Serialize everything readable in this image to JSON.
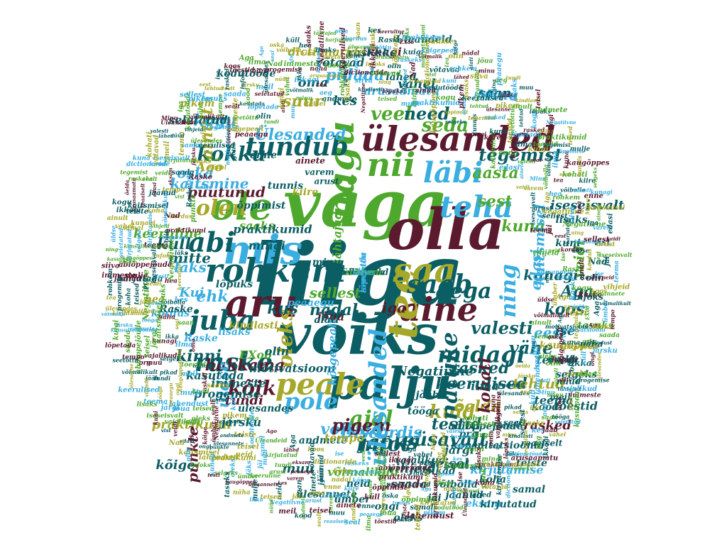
{
  "palette": {
    "background": "#ffffff",
    "colors": [
      "#0b5e63",
      "#5b1a2e",
      "#4fa82e",
      "#3aaee0",
      "#a6a82a"
    ]
  },
  "words": [
    {
      "text": "liiga",
      "color": "#0b5e63",
      "vertical": false
    },
    {
      "text": "väga",
      "color": "#4fa82e",
      "vertical": false
    },
    {
      "text": "olla",
      "color": "#5b1a2e",
      "vertical": false
    },
    {
      "text": "võiks",
      "color": "#0b5e63",
      "vertical": false
    },
    {
      "text": "palju",
      "color": "#0b5e63",
      "vertical": false
    },
    {
      "text": "mis",
      "color": "#3aaee0",
      "vertical": false
    },
    {
      "text": "ole",
      "color": "#4fa82e",
      "vertical": false
    },
    {
      "text": "aru",
      "color": "#5b1a2e",
      "vertical": false
    },
    {
      "text": "rohkem",
      "color": "#0b5e63",
      "vertical": false
    },
    {
      "text": "saa",
      "color": "#a6a82a",
      "vertical": false
    },
    {
      "text": "nii",
      "color": "#4fa82e",
      "vertical": false
    },
    {
      "text": "ülesanded",
      "color": "#5b1a2e",
      "vertical": false
    },
    {
      "text": "aine",
      "color": "#5b1a2e",
      "vertical": false
    },
    {
      "text": "tee",
      "color": "#a6a82a",
      "vertical": true
    },
    {
      "text": "peale",
      "color": "#a6a82a",
      "vertical": false
    },
    {
      "text": "nagu",
      "color": "#4fa82e",
      "vertical": true
    },
    {
      "text": "teha",
      "color": "#3aaee0",
      "vertical": false
    },
    {
      "text": "läbi",
      "color": "#3aaee0",
      "vertical": false
    },
    {
      "text": "abi",
      "color": "#0b5e63",
      "vertical": false
    },
    {
      "text": "olen",
      "color": "#a6a82a",
      "vertical": false
    },
    {
      "text": "juba",
      "color": "#0b5e63",
      "vertical": false
    },
    {
      "text": "raske",
      "color": "#0b5e63",
      "vertical": false
    },
    {
      "text": "pole",
      "color": "#3aaee0",
      "vertical": false
    },
    {
      "text": "midagi",
      "color": "#0b5e63",
      "vertical": false
    },
    {
      "text": "aega",
      "color": "#0b5e63",
      "vertical": false
    },
    {
      "text": "ajal",
      "color": "#4fa82e",
      "vertical": false
    },
    {
      "text": "kokku",
      "color": "#0b5e63",
      "vertical": false
    },
    {
      "text": "tundub",
      "color": "#0b5e63",
      "vertical": false
    },
    {
      "text": "oleks",
      "color": "#a6a82a",
      "vertical": true
    },
    {
      "text": "kõik",
      "color": "#5b1a2e",
      "vertical": false
    },
    {
      "text": "infot",
      "color": "#0b5e63",
      "vertical": false
    },
    {
      "text": "kuid",
      "color": "#a6a82a",
      "vertical": false
    },
    {
      "text": "püsavalt",
      "color": "#0b5e63",
      "vertical": false
    },
    {
      "text": "jaoks",
      "color": "#0b5e63",
      "vertical": false
    },
    {
      "text": "vähe",
      "color": "#0b5e63",
      "vertical": false
    },
    {
      "text": "veel",
      "color": "#4fa82e",
      "vertical": false
    },
    {
      "text": "seda",
      "color": "#4fa82e",
      "vertical": false
    },
    {
      "text": "need",
      "color": "#0b5e63",
      "vertical": false
    },
    {
      "text": "aasta",
      "color": "#4fa82e",
      "vertical": false
    },
    {
      "text": "sest",
      "color": "#4fa82e",
      "vertical": false
    },
    {
      "text": "ehk",
      "color": "#3aaee0",
      "vertical": false
    },
    {
      "text": "kinni",
      "color": "#0b5e63",
      "vertical": false
    },
    {
      "text": "hakkama",
      "color": "#5b1a2e",
      "vertical": false
    },
    {
      "text": "mitte",
      "color": "#0b5e63",
      "vertical": false
    },
    {
      "text": "Kui",
      "color": "#3aaee0",
      "vertical": false
    },
    {
      "text": "kus",
      "color": "#0b5e63",
      "vertical": false
    },
    {
      "text": "suur",
      "color": "#a6a82a",
      "vertical": false
    },
    {
      "text": "Ülesanded",
      "color": "#3aaee0",
      "vertical": false
    },
    {
      "text": "pidada",
      "color": "#3aaee0",
      "vertical": false
    },
    {
      "text": "testid",
      "color": "#0b5e63",
      "vertical": false
    },
    {
      "text": "keerulised",
      "color": "#0b5e63",
      "vertical": false
    },
    {
      "text": "rasked",
      "color": "#0b5e63",
      "vertical": false
    },
    {
      "text": "võiksid",
      "color": "#3aaee0",
      "vertical": false
    },
    {
      "text": "Discordis",
      "color": "#3aaee0",
      "vertical": false
    },
    {
      "text": "pigem",
      "color": "#5b1a2e",
      "vertical": false
    },
    {
      "text": "puutunud",
      "color": "#5b1a2e",
      "vertical": false
    },
    {
      "text": "kaitsmine",
      "color": "#3aaee0",
      "vertical": false
    },
    {
      "text": "saab",
      "color": "#0b5e63",
      "vertical": false
    },
    {
      "text": "natuke",
      "color": "#0b5e63",
      "vertical": true
    },
    {
      "text": "ülesanded",
      "color": "#3aaee0",
      "vertical": true
    },
    {
      "text": "ning",
      "color": "#3aaee0",
      "vertical": true
    },
    {
      "text": "üldse",
      "color": "#3aaee0",
      "vertical": true
    },
    {
      "text": "ainult",
      "color": "#a6a82a",
      "vertical": true
    },
    {
      "text": "kogu",
      "color": "#3aaee0",
      "vertical": false
    },
    {
      "text": "õelda",
      "color": "#a6a82a",
      "vertical": false
    },
    {
      "text": "tegemist",
      "color": "#0b5e63",
      "vertical": false
    },
    {
      "text": "kuna",
      "color": "#4fa82e",
      "vertical": false
    },
    {
      "text": "kohati",
      "color": "#5b1a2e",
      "vertical": true
    },
    {
      "text": "valesti",
      "color": "#0b5e63",
      "vertical": false
    },
    {
      "text": "Minu",
      "color": "#3aaee0",
      "vertical": false
    },
    {
      "text": "iga",
      "color": "#5b1a2e",
      "vertical": false
    },
    {
      "text": "sellest",
      "color": "#4fa82e",
      "vertical": false
    },
    {
      "text": "eest",
      "color": "#3aaee0",
      "vertical": false
    },
    {
      "text": "ise",
      "color": "#0b5e63",
      "vertical": false
    },
    {
      "text": "koos",
      "color": "#0b5e63",
      "vertical": false
    },
    {
      "text": "Aga",
      "color": "#0b5e63",
      "vertical": false
    },
    {
      "text": "Ago",
      "color": "#a6a82a",
      "vertical": false
    },
    {
      "text": "oska",
      "color": "#3aaee0",
      "vertical": false
    },
    {
      "text": "küll",
      "color": "#0b5e63",
      "vertical": false
    },
    {
      "text": "saaks",
      "color": "#4fa82e",
      "vertical": false
    },
    {
      "text": "tähtajad",
      "color": "#4fa82e",
      "vertical": true
    },
    {
      "text": "oma",
      "color": "#0b5e63",
      "vertical": false
    },
    {
      "text": "saan",
      "color": "#0b5e63",
      "vertical": false
    },
    {
      "text": "kes",
      "color": "#0b5e63",
      "vertical": false
    },
    {
      "text": "keeruline",
      "color": "#4fa82e",
      "vertical": false
    },
    {
      "text": "läks",
      "color": "#3aaee0",
      "vertical": false
    },
    {
      "text": "praktikumi",
      "color": "#a6a82a",
      "vertical": false
    },
    {
      "text": "punkte",
      "color": "#5b1a2e",
      "vertical": true
    },
    {
      "text": "kõige",
      "color": "#0b5e63",
      "vertical": false
    },
    {
      "text": "nädal",
      "color": "#0b5e63",
      "vertical": false
    },
    {
      "text": "jõua",
      "color": "#5b1a2e",
      "vertical": false
    },
    {
      "text": "peaaegu",
      "color": "#3aaee0",
      "vertical": false
    },
    {
      "text": "tundi",
      "color": "#5b1a2e",
      "vertical": false
    },
    {
      "text": "muu",
      "color": "#0b5e63",
      "vertical": false
    },
    {
      "text": "teisel",
      "color": "#0b5e63",
      "vertical": false
    },
    {
      "text": "andmete",
      "color": "#0b5e63",
      "vertical": false
    },
    {
      "text": "Negatiivne",
      "color": "#0b5e63",
      "vertical": false
    },
    {
      "text": "teised",
      "color": "#0b5e63",
      "vertical": false
    },
    {
      "text": "mulje",
      "color": "#0b5e63",
      "vertical": false
    },
    {
      "text": "kaugõppes",
      "color": "#a6a82a",
      "vertical": false
    },
    {
      "text": "selgeks",
      "color": "#0b5e63",
      "vertical": false
    },
    {
      "text": "kunagi",
      "color": "#0b5e63",
      "vertical": false
    },
    {
      "text": "kaitsmisel",
      "color": "#3aaee0",
      "vertical": true
    },
    {
      "text": "edasi",
      "color": "#3aaee0",
      "vertical": true
    },
    {
      "text": "veidi",
      "color": "#4fa82e",
      "vertical": true
    },
    {
      "text": "iseseisvalt",
      "color": "#0b5e63",
      "vertical": false
    },
    {
      "text": "teema",
      "color": "#0b5e63",
      "vertical": false
    },
    {
      "text": "vihjeid",
      "color": "#0b5e63",
      "vertical": false
    },
    {
      "text": "võimalikult",
      "color": "#4fa82e",
      "vertical": false
    },
    {
      "text": "tempo",
      "color": "#a6a82a",
      "vertical": false
    },
    {
      "text": "saada",
      "color": "#5b1a2e",
      "vertical": false
    },
    {
      "text": "järsku",
      "color": "#0b5e63",
      "vertical": false
    },
    {
      "text": "ülesandes",
      "color": "#0b5e63",
      "vertical": false
    },
    {
      "text": "progemise",
      "color": "#0b5e63",
      "vertical": false
    },
    {
      "text": "inimeste",
      "color": "#0b5e63",
      "vertical": false
    },
    {
      "text": "kasutada",
      "color": "#0b5e63",
      "vertical": false
    },
    {
      "text": "seletatud",
      "color": "#0b5e63",
      "vertical": false
    },
    {
      "text": "vahel",
      "color": "#0b5e63",
      "vertical": false
    },
    {
      "text": "ikkagi",
      "color": "#5b1a2e",
      "vertical": false
    },
    {
      "text": "arusaamatu",
      "color": "#3aaee0",
      "vertical": false
    },
    {
      "text": "raskeks",
      "color": "#0b5e63",
      "vertical": false
    },
    {
      "text": "dictionaride",
      "color": "#a6a82a",
      "vertical": false
    },
    {
      "text": "võtavad",
      "color": "#0b5e63",
      "vertical": false
    },
    {
      "text": "lähed",
      "color": "#0b5e63",
      "vertical": false
    },
    {
      "text": "Üleandeid",
      "color": "#0b5e63",
      "vertical": false
    },
    {
      "text": "kodutööde",
      "color": "#0b5e63",
      "vertical": false
    },
    {
      "text": "pikem",
      "color": "#a6a82a",
      "vertical": false
    },
    {
      "text": "tehtud",
      "color": "#a6a82a",
      "vertical": false
    },
    {
      "text": "rasked",
      "color": "#5b1a2e",
      "vertical": false
    },
    {
      "text": "tõestid",
      "color": "#0b5e63",
      "vertical": false
    },
    {
      "text": "ilma",
      "color": "#0b5e63",
      "vertical": false
    },
    {
      "text": "seal",
      "color": "#0b5e63",
      "vertical": false
    },
    {
      "text": "võibolla",
      "color": "#0b5e63",
      "vertical": false
    },
    {
      "text": "hea",
      "color": "#a6a82a",
      "vertical": false
    },
    {
      "text": "Negatiivne",
      "color": "#4fa82e",
      "vertical": true
    },
    {
      "text": "harjutada",
      "color": "#0b5e63",
      "vertical": false
    },
    {
      "text": "kordus",
      "color": "#3aaee0",
      "vertical": false
    },
    {
      "text": "Raske",
      "color": "#0b5e63",
      "vertical": false
    },
    {
      "text": "Raske",
      "color": "#3aaee0",
      "vertical": false
    },
    {
      "text": "EXo6",
      "color": "#4fa82e",
      "vertical": false
    },
    {
      "text": "motivatsiooni",
      "color": "#0b5e63",
      "vertical": false
    },
    {
      "text": "kõigepealt",
      "color": "#3aaee0",
      "vertical": true
    },
    {
      "text": "olin",
      "color": "#0b5e63",
      "vertical": false
    },
    {
      "text": "alati",
      "color": "#0b5e63",
      "vertical": false
    },
    {
      "text": "minu",
      "color": "#0b5e63",
      "vertical": false
    },
    {
      "text": "aeg",
      "color": "#0b5e63",
      "vertical": false
    },
    {
      "text": "lisaks",
      "color": "#3aaee0",
      "vertical": false
    },
    {
      "text": "kindlasti",
      "color": "#a6a82a",
      "vertical": false
    },
    {
      "text": "lõpuks",
      "color": "#0b5e63",
      "vertical": false
    },
    {
      "text": "mingi",
      "color": "#0b5e63",
      "vertical": false
    },
    {
      "text": "praktikumid",
      "color": "#0b5e63",
      "vertical": false
    },
    {
      "text": "õppimist",
      "color": "#0b5e63",
      "vertical": false
    },
    {
      "text": "tunnis",
      "color": "#0b5e63",
      "vertical": false
    },
    {
      "text": "kiire",
      "color": "#a6a82a",
      "vertical": false
    },
    {
      "text": "enne",
      "color": "#0b5e63",
      "vertical": false
    },
    {
      "text": "ainete",
      "color": "#5b1a2e",
      "vertical": false
    },
    {
      "text": "varem",
      "color": "#0b5e63",
      "vertical": false
    },
    {
      "text": "arust",
      "color": "#0b5e63",
      "vertical": false
    },
    {
      "text": "jäi",
      "color": "#0b5e63",
      "vertical": false
    },
    {
      "text": "neid",
      "color": "#0b5e63",
      "vertical": false
    },
    {
      "text": "ülesannete",
      "color": "#0b5e63",
      "vertical": false
    },
    {
      "text": "ümber",
      "color": "#0b5e63",
      "vertical": false
    },
    {
      "text": "oleks",
      "color": "#0b5e63",
      "vertical": false
    },
    {
      "text": "lahendust",
      "color": "#5b1a2e",
      "vertical": false
    },
    {
      "text": "ongi",
      "color": "#0b5e63",
      "vertical": false
    },
    {
      "text": "pikad",
      "color": "#0b5e63",
      "vertical": false
    },
    {
      "text": "vajalikud",
      "color": "#0b5e63",
      "vertical": false
    },
    {
      "text": "järgi",
      "color": "#0b5e63",
      "vertical": false
    },
    {
      "text": "tööga",
      "color": "#0b5e63",
      "vertical": false
    },
    {
      "text": "jääb",
      "color": "#0b5e63",
      "vertical": false
    },
    {
      "text": "prg",
      "color": "#0b5e63",
      "vertical": false
    },
    {
      "text": "abiõppejõude",
      "color": "#0b5e63",
      "vertical": false
    },
    {
      "text": "konsultatsioonid",
      "color": "#0b5e63",
      "vertical": false
    },
    {
      "text": "kirjutamise",
      "color": "#3aaee0",
      "vertical": false
    },
    {
      "text": "koha",
      "color": "#0b5e63",
      "vertical": false
    },
    {
      "text": "jäänud",
      "color": "#0b5e63",
      "vertical": false
    },
    {
      "text": "eksam",
      "color": "#3aaee0",
      "vertical": false
    },
    {
      "text": "kirjutatud",
      "color": "#0b5e63",
      "vertical": false
    },
    {
      "text": "samal",
      "color": "#0b5e63",
      "vertical": false
    },
    {
      "text": "teiste",
      "color": "#0b5e63",
      "vertical": false
    },
    {
      "text": "reaalselt",
      "color": "#0b5e63",
      "vertical": false
    },
    {
      "text": "sealt",
      "color": "#0b5e63",
      "vertical": false
    },
    {
      "text": "kood",
      "color": "#0b5e63",
      "vertical": false
    },
    {
      "text": "meil",
      "color": "#0b5e63",
      "vertical": false
    },
    {
      "text": "nüüd",
      "color": "#0b5e63",
      "vertical": false
    },
    {
      "text": "ikka",
      "color": "#0b5e63",
      "vertical": false
    },
    {
      "text": "näha",
      "color": "#0b5e63",
      "vertical": false
    },
    {
      "text": "tasuks",
      "color": "#4fa82e",
      "vertical": false
    },
    {
      "text": "testi",
      "color": "#a6a82a",
      "vertical": false
    },
    {
      "text": "infoks",
      "color": "#0b5e63",
      "vertical": false
    },
    {
      "text": "olin",
      "color": "#5b1a2e",
      "vertical": false
    },
    {
      "text": "Nad",
      "color": "#0b5e63",
      "vertical": false
    },
    {
      "text": "vist",
      "color": "#0b5e63",
      "vertical": false
    },
    {
      "text": "kuni",
      "color": "#0b5e63",
      "vertical": false
    },
    {
      "text": "lisaks",
      "color": "#0b5e63",
      "vertical": false
    },
    {
      "text": "keerulised",
      "color": "#0b5e63",
      "vertical": false
    },
    {
      "text": "ülesanne",
      "color": "#0b5e63",
      "vertical": false
    },
    {
      "text": "seetõttu",
      "color": "#3aaee0",
      "vertical": true
    },
    {
      "text": "lõpetada",
      "color": "#3aaee0",
      "vertical": true
    },
    {
      "text": "kuigi",
      "color": "#0b5e63",
      "vertical": false
    },
    {
      "text": "võimalik",
      "color": "#0b5e63",
      "vertical": false
    },
    {
      "text": "tea",
      "color": "#3aaee0",
      "vertical": false
    },
    {
      "text": "rohkem",
      "color": "#4fa82e",
      "vertical": false
    },
    {
      "text": "siiva",
      "color": "#3aaee0",
      "vertical": false
    }
  ]
}
